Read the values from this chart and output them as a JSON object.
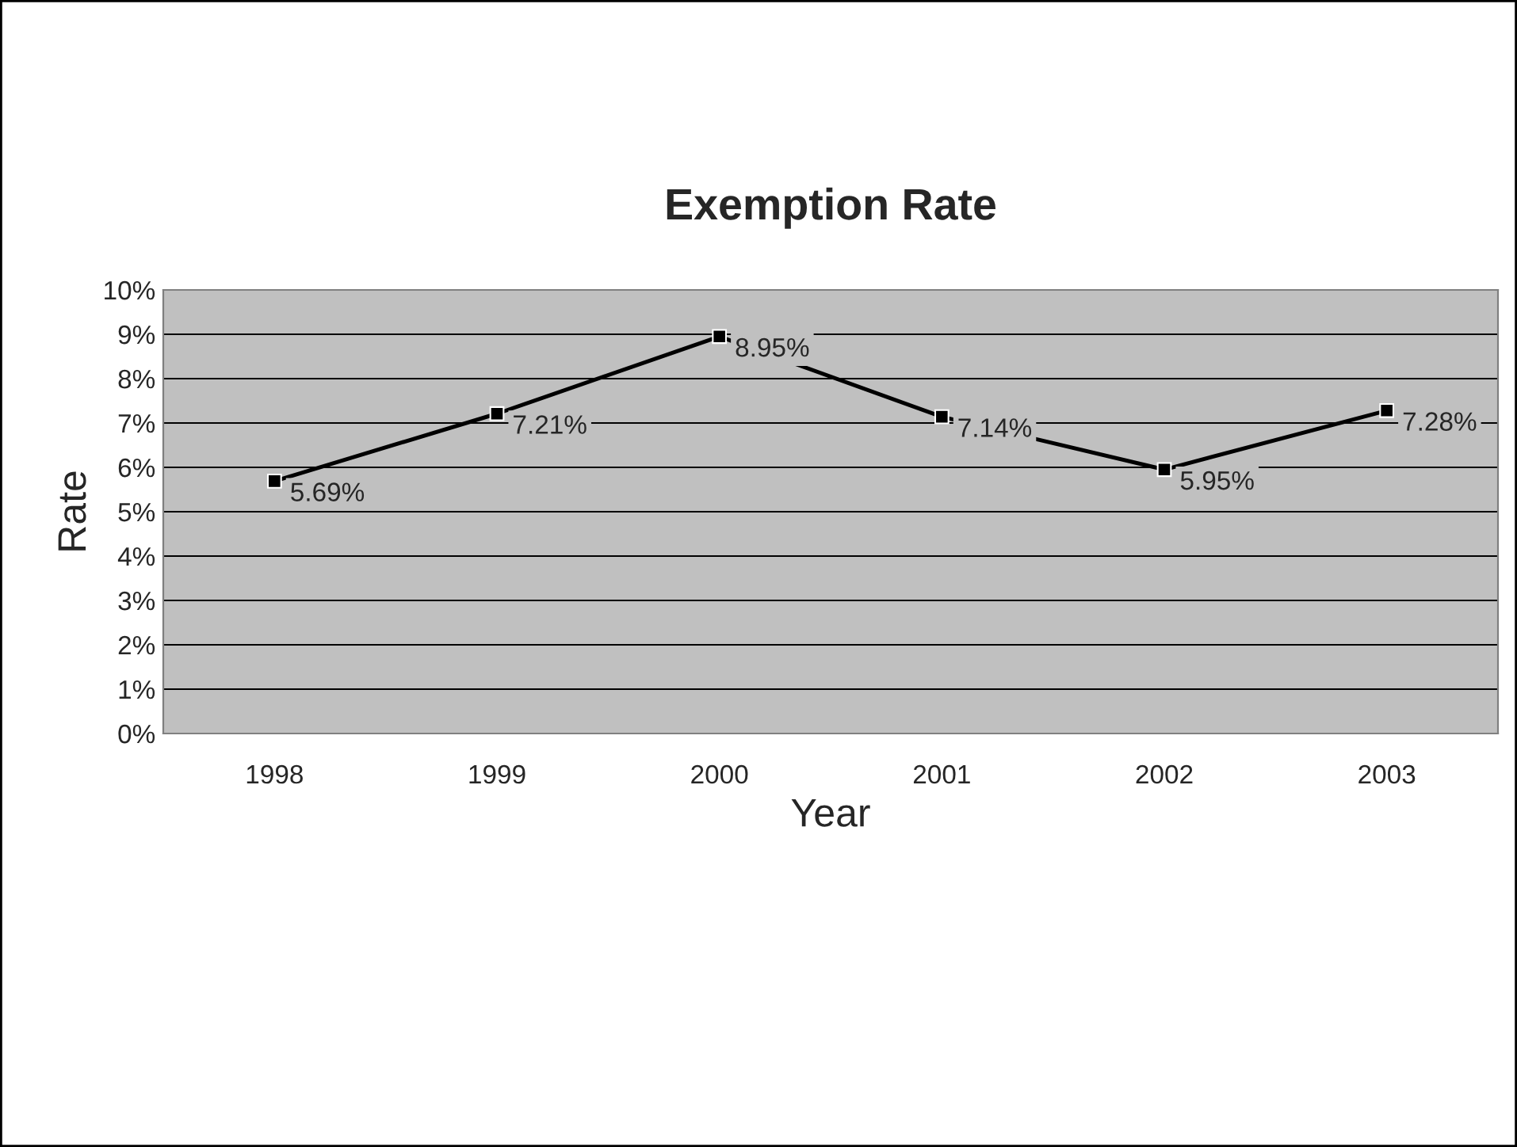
{
  "chart_data": {
    "type": "line",
    "title": "Exemption Rate",
    "xlabel": "Year",
    "ylabel": "Rate",
    "categories": [
      "1998",
      "1999",
      "2000",
      "2001",
      "2002",
      "2003"
    ],
    "series": [
      {
        "color": "#000000",
        "values": [
          5.69,
          7.21,
          8.95,
          7.14,
          5.95,
          7.28
        ],
        "value_labels": [
          "5.69%",
          "7.21%",
          "8.95%",
          "7.14%",
          "5.95%",
          "7.28%"
        ]
      }
    ],
    "ylim": [
      0,
      10
    ],
    "yticks": [
      {
        "value": 0,
        "label": "0%"
      },
      {
        "value": 1,
        "label": "1%"
      },
      {
        "value": 2,
        "label": "2%"
      },
      {
        "value": 3,
        "label": "3%"
      },
      {
        "value": 4,
        "label": "4%"
      },
      {
        "value": 5,
        "label": "5%"
      },
      {
        "value": 6,
        "label": "6%"
      },
      {
        "value": 7,
        "label": "7%"
      },
      {
        "value": 8,
        "label": "8%"
      },
      {
        "value": 9,
        "label": "9%"
      },
      {
        "value": 10,
        "label": "10%"
      }
    ],
    "grid": "y",
    "marker": "square",
    "line_style": "solid",
    "legend": false
  }
}
